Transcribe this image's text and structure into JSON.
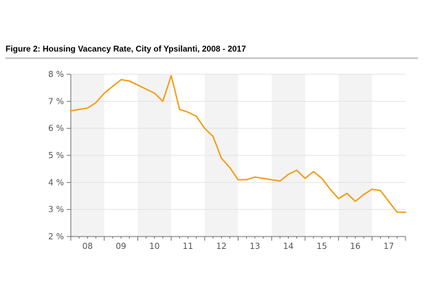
{
  "figure": {
    "title": "Figure 2: Housing Vacancy Rate, City of Ypsilanti, 2008 - 2017"
  },
  "chart_data": {
    "type": "line",
    "title": "Figure 2: Housing Vacancy Rate, City of Ypsilanti, 2008 - 2017",
    "xlabel": "",
    "ylabel": "",
    "ylim": [
      2,
      8
    ],
    "yticks": [
      2,
      3,
      4,
      5,
      6,
      7,
      8
    ],
    "ytick_labels": [
      "2 %",
      "3 %",
      "4 %",
      "5 %",
      "6 %",
      "7 %",
      "8 %"
    ],
    "x_tick_labels": [
      "08",
      "09",
      "10",
      "11",
      "12",
      "13",
      "14",
      "15",
      "16",
      "17"
    ],
    "x_unit": "quarter",
    "xlim": [
      2008.0,
      2018.0
    ],
    "grid": "horizontal",
    "alternating_year_bands": true,
    "legend": "none",
    "colors": {
      "line": "#f29c12",
      "band": "#f3f3f3",
      "grid": "#e2e2e2",
      "axis": "#666666"
    },
    "series": [
      {
        "x": [
          2008.0,
          2008.25,
          2008.5,
          2008.75,
          2009.0,
          2009.25,
          2009.5,
          2009.75,
          2010.0,
          2010.25,
          2010.5,
          2010.75,
          2011.0,
          2011.25,
          2011.5,
          2011.75,
          2012.0,
          2012.25,
          2012.5,
          2012.75,
          2013.0,
          2013.25,
          2013.5,
          2013.75,
          2014.0,
          2014.25,
          2014.5,
          2014.75,
          2015.0,
          2015.25,
          2015.5,
          2015.75,
          2016.0,
          2016.25,
          2016.5,
          2016.75,
          2017.0,
          2017.25,
          2017.5,
          2017.75
        ],
        "values": [
          6.65,
          6.7,
          6.75,
          6.95,
          7.3,
          7.55,
          7.8,
          7.75,
          7.6,
          7.45,
          7.3,
          7.0,
          7.95,
          6.7,
          6.6,
          6.45,
          6.0,
          5.7,
          4.9,
          4.55,
          4.1,
          4.1,
          4.2,
          4.15,
          4.1,
          4.05,
          4.3,
          4.45,
          4.15,
          4.4,
          4.15,
          3.75,
          3.4,
          3.6,
          3.3,
          3.55,
          3.75,
          3.7,
          3.3,
          2.9
        ]
      }
    ],
    "last_point": {
      "x": 2018.0,
      "value": 2.9
    }
  }
}
